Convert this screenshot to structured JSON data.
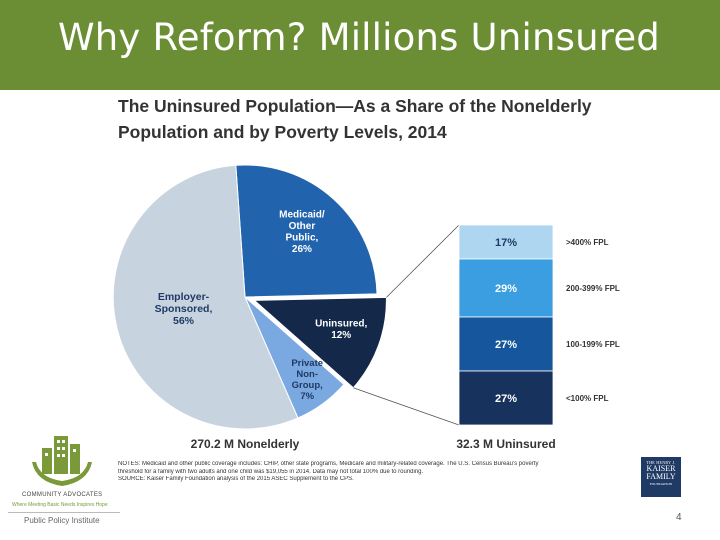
{
  "slide": {
    "title": "Why Reform? Millions Uninsured",
    "page_number": "4",
    "accent_color": "#6b8e35"
  },
  "chart_data": [
    {
      "type": "pie",
      "title": "The Uninsured Population—As a Share of the Nonelderly Population and by Poverty Levels, 2014",
      "caption": "270.2 M Nonelderly",
      "slices": [
        {
          "label": "Medicaid/ Other Public,",
          "value": 26,
          "display": "26%",
          "color": "#2164ad"
        },
        {
          "label": "Uninsured,",
          "value": 12,
          "display": "12%",
          "color": "#14284a"
        },
        {
          "label": "Private Non- Group,",
          "value": 7,
          "display": "7%",
          "color": "#7aa8e0"
        },
        {
          "label": "Employer- Sponsored,",
          "value": 56,
          "display": "56%",
          "color": "#c8d3e0"
        }
      ]
    },
    {
      "type": "bar",
      "stacked": true,
      "caption": "32.3 M Uninsured",
      "segments": [
        {
          "label": ">400% FPL",
          "value": 17,
          "display": "17%",
          "color": "#aed6f1"
        },
        {
          "label": "200-399% FPL",
          "value": 29,
          "display": "29%",
          "color": "#3a9ee0"
        },
        {
          "label": "100-199% FPL",
          "value": 27,
          "display": "27%",
          "color": "#16569c"
        },
        {
          "label": "<100% FPL",
          "value": 27,
          "display": "27%",
          "color": "#17325c"
        }
      ]
    }
  ],
  "notes": {
    "line1": "NOTES: Medicaid and other public coverage includes: CHIP, other state programs, Medicare and military-related coverage. The U.S. Census Bureau's poverty",
    "line2": "threshold for a family with two adults and one child was $19,055 in 2014. Data may not total 100% due to rounding.",
    "line3": "SOURCE: Kaiser Family Foundation analysis of the 2015 ASEC Supplement to the CPS."
  },
  "logos": {
    "left_org": "COMMUNITY ADVOCATES",
    "left_tagline": "Where Meeting Basic Needs Inspires Hope",
    "left_institute": "Public Policy Institute",
    "kff_the": "THE HENRY J.",
    "kff_line1": "KAISER",
    "kff_line2": "FAMILY",
    "kff_foundation": "FOUNDATION"
  }
}
